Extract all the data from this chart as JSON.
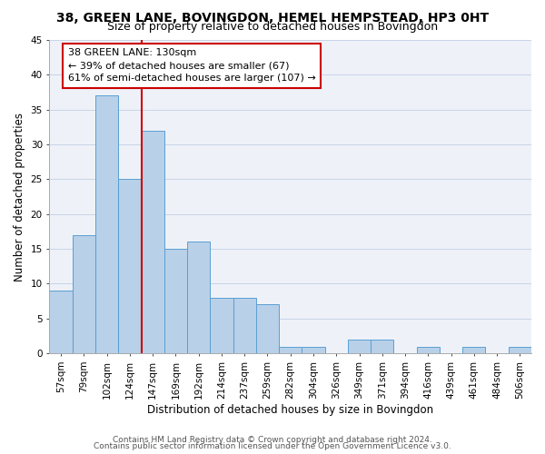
{
  "title": "38, GREEN LANE, BOVINGDON, HEMEL HEMPSTEAD, HP3 0HT",
  "subtitle": "Size of property relative to detached houses in Bovingdon",
  "xlabel": "Distribution of detached houses by size in Bovingdon",
  "ylabel": "Number of detached properties",
  "categories": [
    "57sqm",
    "79sqm",
    "102sqm",
    "124sqm",
    "147sqm",
    "169sqm",
    "192sqm",
    "214sqm",
    "237sqm",
    "259sqm",
    "282sqm",
    "304sqm",
    "326sqm",
    "349sqm",
    "371sqm",
    "394sqm",
    "416sqm",
    "439sqm",
    "461sqm",
    "484sqm",
    "506sqm"
  ],
  "values": [
    9,
    17,
    37,
    25,
    32,
    15,
    16,
    8,
    8,
    7,
    1,
    1,
    0,
    2,
    2,
    0,
    1,
    0,
    1,
    0,
    1
  ],
  "bar_color": "#b8d0e8",
  "bar_edge_color": "#5a9fd4",
  "ylim": [
    0,
    45
  ],
  "yticks": [
    0,
    5,
    10,
    15,
    20,
    25,
    30,
    35,
    40,
    45
  ],
  "vline_x_index": 3.5,
  "vline_color": "#cc0000",
  "annotation_box_text": "38 GREEN LANE: 130sqm\n← 39% of detached houses are smaller (67)\n61% of semi-detached houses are larger (107) →",
  "footer_line1": "Contains HM Land Registry data © Crown copyright and database right 2024.",
  "footer_line2": "Contains public sector information licensed under the Open Government Licence v3.0.",
  "background_color": "#eef2f8",
  "grid_color": "#c8d4e8",
  "title_fontsize": 10,
  "subtitle_fontsize": 9,
  "label_fontsize": 8.5,
  "tick_fontsize": 7.5,
  "annotation_fontsize": 8,
  "footer_fontsize": 6.5
}
